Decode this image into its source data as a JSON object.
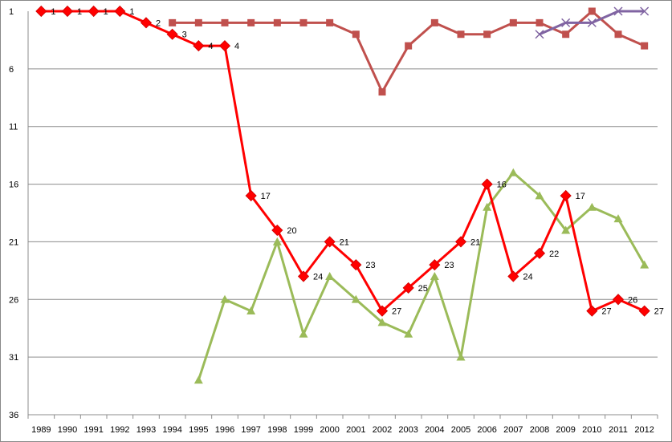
{
  "chart_data": {
    "type": "line",
    "title": "",
    "xlabel": "",
    "ylabel": "",
    "y_reversed": true,
    "ylim": [
      1,
      36
    ],
    "grid": "horizontal",
    "legend": "none",
    "categories": [
      "1989",
      "1990",
      "1991",
      "1992",
      "1993",
      "1994",
      "1995",
      "1996",
      "1997",
      "1998",
      "1999",
      "2000",
      "2001",
      "2002",
      "2003",
      "2004",
      "2005",
      "2006",
      "2007",
      "2008",
      "2009",
      "2010",
      "2011",
      "2012"
    ],
    "y_ticks": [
      "1",
      "6",
      "11",
      "16",
      "21",
      "26",
      "31",
      "36"
    ],
    "series": [
      {
        "color": "#ff0000",
        "marker": "diamond",
        "show_labels": true,
        "values": [
          1,
          1,
          1,
          1,
          2,
          3,
          4,
          4,
          17,
          20,
          24,
          21,
          23,
          27,
          25,
          23,
          21,
          16,
          24,
          22,
          17,
          27,
          26,
          27
        ]
      },
      {
        "color": "#c0504d",
        "marker": "square",
        "show_labels": false,
        "values": [
          null,
          null,
          null,
          null,
          null,
          2,
          2,
          2,
          2,
          2,
          2,
          2,
          3,
          8,
          4,
          2,
          3,
          3,
          2,
          2,
          3,
          1,
          3,
          4
        ]
      },
      {
        "color": "#9bbb59",
        "marker": "triangle",
        "show_labels": false,
        "values": [
          null,
          null,
          null,
          null,
          null,
          null,
          33,
          26,
          27,
          21,
          29,
          24,
          26,
          28,
          29,
          24,
          31,
          18,
          15,
          17,
          20,
          18,
          19,
          23
        ]
      },
      {
        "color": "#8064a2",
        "marker": "x",
        "show_labels": false,
        "values": [
          null,
          null,
          null,
          null,
          null,
          null,
          null,
          null,
          null,
          null,
          null,
          null,
          null,
          null,
          null,
          null,
          null,
          null,
          null,
          3,
          2,
          2,
          1,
          1
        ]
      }
    ]
  }
}
